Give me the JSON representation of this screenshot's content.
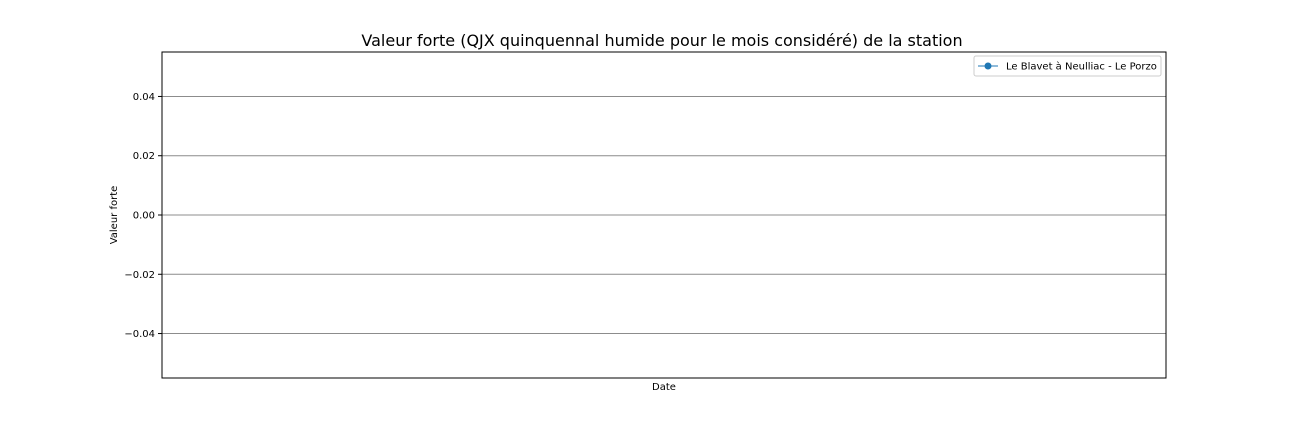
{
  "chart_data": {
    "type": "line",
    "title": "Valeur forte (QJX quinquennal humide pour le mois considéré) de la station",
    "xlabel": "Date",
    "ylabel": "Valeur forte",
    "ylim": [
      -0.055,
      0.055
    ],
    "yticks": [
      -0.04,
      -0.02,
      0.0,
      0.02,
      0.04
    ],
    "ytick_labels": [
      "−0.04",
      "−0.02",
      "0.00",
      "0.02",
      "0.04"
    ],
    "grid": "horizontal",
    "legend_position": "top-right",
    "series": [
      {
        "name": "Le Blavet à Neulliac - Le Porzo",
        "color": "#1f77b4",
        "marker": "circle",
        "x": [],
        "y": []
      }
    ]
  }
}
